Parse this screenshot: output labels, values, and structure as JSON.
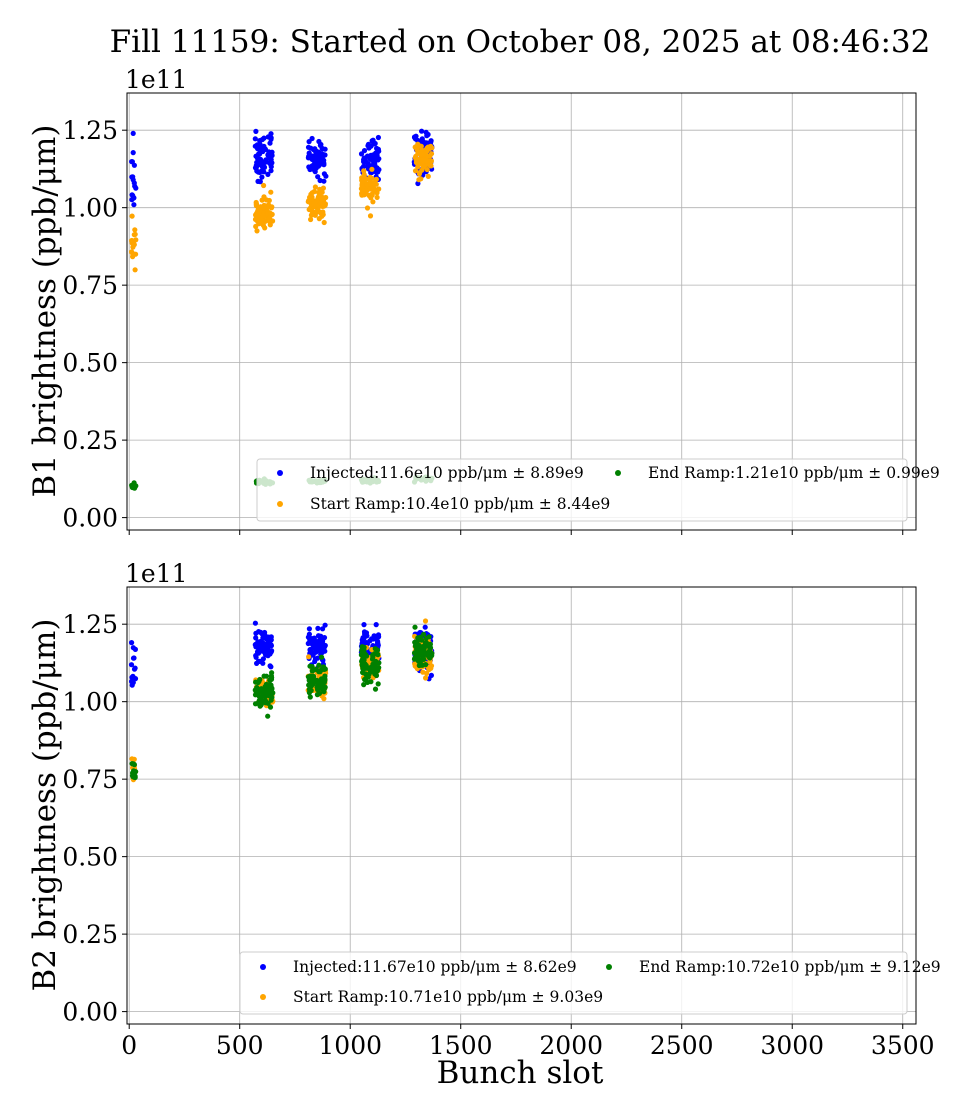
{
  "figure": {
    "title": "Fill 11159: Started on October 08, 2025 at 08:46:32"
  },
  "colors": {
    "injected": "#0000ff",
    "start_ramp": "#ffa500",
    "end_ramp": "#008000",
    "grid": "#b0b0b0"
  },
  "chart_data": [
    {
      "type": "scatter",
      "panel": "top",
      "title": "",
      "xlabel": "",
      "ylabel": "B1 brightness (ppb/μm)",
      "y_offset_text": "1e11",
      "xlim": [
        -10,
        3560
      ],
      "ylim": [
        -0.04,
        1.37
      ],
      "y_scale": "1e11",
      "grid": true,
      "xticks": [
        0,
        500,
        1000,
        1500,
        2000,
        2500,
        3000,
        3500
      ],
      "xtick_labels_visible": false,
      "yticks": [
        0.0,
        0.25,
        0.5,
        0.75,
        1.0,
        1.25
      ],
      "ytick_labels": [
        "0.00",
        "0.25",
        "0.50",
        "0.75",
        "1.00",
        "1.25"
      ],
      "legend": {
        "placement": "lower-right",
        "columns": 2,
        "entries": [
          {
            "label": "Injected:11.6e10 ppb/μm ± 8.89e9",
            "color_key": "injected"
          },
          {
            "label": "Start Ramp:10.4e10 ppb/μm ± 8.44e9",
            "color_key": "start_ramp"
          },
          {
            "label": "End Ramp:1.21e10 ppb/μm ± 0.99e9",
            "color_key": "end_ramp"
          }
        ]
      },
      "series": [
        {
          "name": "Injected",
          "color_key": "injected",
          "clusters": [
            {
              "x_range": [
                10,
                30
              ],
              "y_mean": 1.1,
              "y_spread": 0.09,
              "n": 16
            },
            {
              "x_range": [
                570,
                650
              ],
              "y_mean": 1.17,
              "y_spread": 0.06,
              "n": 70
            },
            {
              "x_range": [
                810,
                890
              ],
              "y_mean": 1.16,
              "y_spread": 0.05,
              "n": 70
            },
            {
              "x_range": [
                1050,
                1130
              ],
              "y_mean": 1.15,
              "y_spread": 0.05,
              "n": 70
            },
            {
              "x_range": [
                1290,
                1370
              ],
              "y_mean": 1.18,
              "y_spread": 0.06,
              "n": 70
            }
          ]
        },
        {
          "name": "Start Ramp",
          "color_key": "start_ramp",
          "clusters": [
            {
              "x_range": [
                10,
                30
              ],
              "y_mean": 0.88,
              "y_spread": 0.07,
              "n": 16
            },
            {
              "x_range": [
                570,
                650
              ],
              "y_mean": 0.98,
              "y_spread": 0.05,
              "n": 70
            },
            {
              "x_range": [
                810,
                890
              ],
              "y_mean": 1.01,
              "y_spread": 0.04,
              "n": 70
            },
            {
              "x_range": [
                1050,
                1130
              ],
              "y_mean": 1.06,
              "y_spread": 0.04,
              "n": 70
            },
            {
              "x_range": [
                1290,
                1370
              ],
              "y_mean": 1.16,
              "y_spread": 0.05,
              "n": 70
            }
          ]
        },
        {
          "name": "End Ramp",
          "color_key": "end_ramp",
          "clusters": [
            {
              "x_range": [
                10,
                30
              ],
              "y_mean": 0.1,
              "y_spread": 0.008,
              "n": 10
            },
            {
              "x_range": [
                570,
                650
              ],
              "y_mean": 0.115,
              "y_spread": 0.006,
              "n": 30
            },
            {
              "x_range": [
                810,
                890
              ],
              "y_mean": 0.118,
              "y_spread": 0.006,
              "n": 30
            },
            {
              "x_range": [
                1050,
                1130
              ],
              "y_mean": 0.12,
              "y_spread": 0.006,
              "n": 30
            },
            {
              "x_range": [
                1290,
                1370
              ],
              "y_mean": 0.125,
              "y_spread": 0.006,
              "n": 30
            }
          ]
        }
      ]
    },
    {
      "type": "scatter",
      "panel": "bottom",
      "title": "",
      "xlabel": "Bunch slot",
      "ylabel": "B2 brightness (ppb/μm)",
      "y_offset_text": "1e11",
      "xlim": [
        -10,
        3560
      ],
      "ylim": [
        -0.04,
        1.37
      ],
      "y_scale": "1e11",
      "grid": true,
      "xticks": [
        0,
        500,
        1000,
        1500,
        2000,
        2500,
        3000,
        3500
      ],
      "xtick_labels": [
        "0",
        "500",
        "1000",
        "1500",
        "2000",
        "2500",
        "3000",
        "3500"
      ],
      "yticks": [
        0.0,
        0.25,
        0.5,
        0.75,
        1.0,
        1.25
      ],
      "ytick_labels": [
        "0.00",
        "0.25",
        "0.50",
        "0.75",
        "1.00",
        "1.25"
      ],
      "legend": {
        "placement": "lower-right",
        "columns": 2,
        "entries": [
          {
            "label": "Injected:11.67e10 ppb/μm ± 8.62e9",
            "color_key": "injected"
          },
          {
            "label": "Start Ramp:10.71e10 ppb/μm ± 9.03e9",
            "color_key": "start_ramp"
          },
          {
            "label": "End Ramp:10.72e10 ppb/μm ± 9.12e9",
            "color_key": "end_ramp"
          }
        ]
      },
      "series": [
        {
          "name": "Injected",
          "color_key": "injected",
          "clusters": [
            {
              "x_range": [
                10,
                30
              ],
              "y_mean": 1.12,
              "y_spread": 0.07,
              "n": 14
            },
            {
              "x_range": [
                570,
                650
              ],
              "y_mean": 1.18,
              "y_spread": 0.05,
              "n": 70
            },
            {
              "x_range": [
                810,
                890
              ],
              "y_mean": 1.18,
              "y_spread": 0.05,
              "n": 70
            },
            {
              "x_range": [
                1050,
                1130
              ],
              "y_mean": 1.17,
              "y_spread": 0.05,
              "n": 70
            },
            {
              "x_range": [
                1290,
                1370
              ],
              "y_mean": 1.17,
              "y_spread": 0.06,
              "n": 70
            }
          ]
        },
        {
          "name": "Start Ramp",
          "color_key": "start_ramp",
          "clusters": [
            {
              "x_range": [
                10,
                30
              ],
              "y_mean": 0.78,
              "y_spread": 0.03,
              "n": 10
            },
            {
              "x_range": [
                570,
                650
              ],
              "y_mean": 1.03,
              "y_spread": 0.04,
              "n": 60
            },
            {
              "x_range": [
                810,
                890
              ],
              "y_mean": 1.07,
              "y_spread": 0.04,
              "n": 60
            },
            {
              "x_range": [
                1050,
                1130
              ],
              "y_mean": 1.12,
              "y_spread": 0.04,
              "n": 60
            },
            {
              "x_range": [
                1290,
                1370
              ],
              "y_mean": 1.16,
              "y_spread": 0.05,
              "n": 60
            }
          ]
        },
        {
          "name": "End Ramp",
          "color_key": "end_ramp",
          "clusters": [
            {
              "x_range": [
                10,
                30
              ],
              "y_mean": 0.78,
              "y_spread": 0.03,
              "n": 12
            },
            {
              "x_range": [
                570,
                650
              ],
              "y_mean": 1.03,
              "y_spread": 0.045,
              "n": 70
            },
            {
              "x_range": [
                810,
                890
              ],
              "y_mean": 1.07,
              "y_spread": 0.045,
              "n": 70
            },
            {
              "x_range": [
                1050,
                1130
              ],
              "y_mean": 1.12,
              "y_spread": 0.045,
              "n": 70
            },
            {
              "x_range": [
                1290,
                1370
              ],
              "y_mean": 1.16,
              "y_spread": 0.05,
              "n": 70
            }
          ]
        }
      ]
    }
  ]
}
